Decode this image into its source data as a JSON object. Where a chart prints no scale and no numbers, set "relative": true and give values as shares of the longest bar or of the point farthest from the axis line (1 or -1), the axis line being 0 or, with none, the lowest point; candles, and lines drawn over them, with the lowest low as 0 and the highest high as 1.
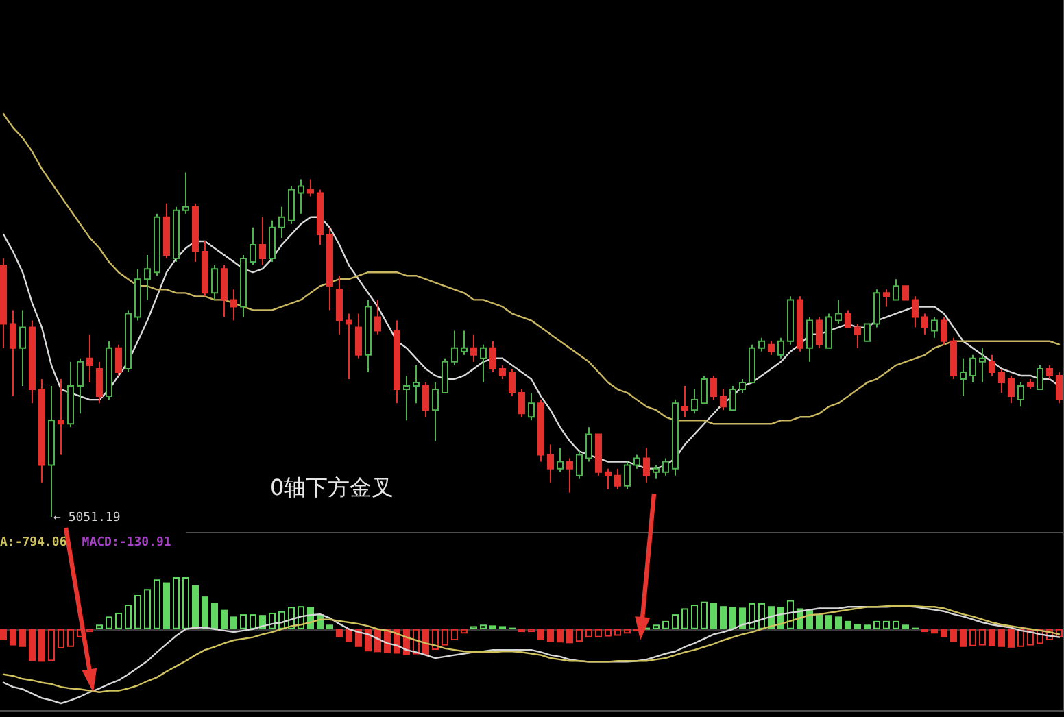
{
  "chart_data": [
    {
      "type": "candlestick",
      "relative": true,
      "categories": [
        null,
        null,
        null,
        null,
        null,
        null,
        null,
        null,
        null,
        null,
        null,
        null,
        null,
        null,
        null,
        null,
        null,
        null,
        null,
        null,
        null,
        null,
        null,
        null,
        null,
        null,
        null,
        null,
        null,
        null,
        null,
        null,
        null,
        null,
        null,
        null,
        null,
        null,
        null,
        null,
        null,
        null,
        null,
        null,
        null,
        null,
        null,
        null,
        null,
        null,
        null,
        null,
        null,
        null,
        null,
        null,
        null,
        null,
        null,
        null,
        null,
        null,
        null,
        null,
        null,
        null,
        null,
        null,
        null,
        null,
        null,
        null,
        null,
        null,
        null,
        null,
        null,
        null,
        null,
        null,
        null,
        null,
        null,
        null,
        null,
        null,
        null,
        null,
        null,
        null,
        null,
        null,
        null,
        null,
        null,
        null,
        null,
        null,
        null,
        null,
        null,
        null,
        null,
        null,
        null,
        null,
        null,
        null,
        null,
        null,
        null
      ],
      "ohlc": [
        [
          0.73,
          0.75,
          0.49,
          0.56
        ],
        [
          0.56,
          0.6,
          0.35,
          0.49
        ],
        [
          0.49,
          0.6,
          0.38,
          0.55
        ],
        [
          0.55,
          0.57,
          0.33,
          0.37
        ],
        [
          0.37,
          0.4,
          0.1,
          0.15
        ],
        [
          0.15,
          0.38,
          0,
          0.28
        ],
        [
          0.28,
          0.4,
          0.18,
          0.27
        ],
        [
          0.27,
          0.45,
          0.26,
          0.38
        ],
        [
          0.38,
          0.46,
          0.3,
          0.45
        ],
        [
          0.46,
          0.53,
          0.39,
          0.44
        ],
        [
          0.43,
          0.45,
          0.33,
          0.35
        ],
        [
          0.35,
          0.51,
          0.34,
          0.49
        ],
        [
          0.49,
          0.5,
          0.41,
          0.42
        ],
        [
          0.43,
          0.6,
          0.42,
          0.59
        ],
        [
          0.58,
          0.72,
          0.57,
          0.69
        ],
        [
          0.69,
          0.76,
          0.63,
          0.72
        ],
        [
          0.71,
          0.88,
          0.7,
          0.87
        ],
        [
          0.87,
          0.91,
          0.75,
          0.76
        ],
        [
          0.75,
          0.9,
          0.74,
          0.89
        ],
        [
          0.89,
          1.0,
          0.88,
          0.9
        ],
        [
          0.9,
          0.91,
          0.74,
          0.77
        ],
        [
          0.77,
          0.8,
          0.64,
          0.65
        ],
        [
          0.65,
          0.73,
          0.63,
          0.72
        ],
        [
          0.72,
          0.73,
          0.58,
          0.63
        ],
        [
          0.63,
          0.66,
          0.57,
          0.61
        ],
        [
          0.61,
          0.76,
          0.58,
          0.75
        ],
        [
          0.74,
          0.84,
          0.73,
          0.79
        ],
        [
          0.79,
          0.87,
          0.73,
          0.75
        ],
        [
          0.75,
          0.86,
          0.74,
          0.84
        ],
        [
          0.84,
          0.9,
          0.81,
          0.87
        ],
        [
          0.86,
          0.96,
          0.85,
          0.95
        ],
        [
          0.94,
          0.98,
          0.88,
          0.96
        ],
        [
          0.95,
          0.98,
          0.93,
          0.94
        ],
        [
          0.94,
          0.95,
          0.79,
          0.82
        ],
        [
          0.82,
          0.84,
          0.6,
          0.67
        ],
        [
          0.66,
          0.7,
          0.53,
          0.57
        ],
        [
          0.57,
          0.59,
          0.4,
          0.56
        ],
        [
          0.55,
          0.59,
          0.46,
          0.47
        ],
        [
          0.47,
          0.63,
          0.42,
          0.61
        ],
        [
          0.58,
          0.63,
          0.53,
          0.54
        ],
        null,
        [
          0.54,
          0.57,
          0.33,
          0.37
        ],
        [
          0.37,
          0.41,
          0.28,
          0.38
        ],
        [
          0.38,
          0.44,
          0.33,
          0.39
        ],
        [
          0.38,
          0.39,
          0.29,
          0.31
        ],
        [
          0.31,
          0.39,
          0.22,
          0.37
        ],
        [
          0.36,
          0.46,
          0.36,
          0.45
        ],
        [
          0.45,
          0.54,
          0.44,
          0.49
        ],
        [
          0.48,
          0.54,
          0.47,
          0.49
        ],
        [
          0.49,
          0.53,
          0.45,
          0.47
        ],
        [
          0.46,
          0.5,
          0.39,
          0.49
        ],
        [
          0.49,
          0.51,
          0.42,
          0.43
        ],
        [
          0.43,
          0.44,
          0.4,
          0.41
        ],
        [
          0.42,
          0.43,
          0.35,
          0.36
        ],
        [
          0.36,
          0.37,
          0.29,
          0.3
        ],
        [
          0.29,
          0.36,
          0.28,
          0.33
        ],
        [
          0.33,
          0.34,
          0.16,
          0.18
        ],
        [
          0.18,
          0.21,
          0.1,
          0.14
        ],
        [
          0.14,
          0.2,
          0.13,
          0.16
        ],
        [
          0.16,
          0.17,
          0.07,
          0.14
        ],
        [
          0.12,
          0.19,
          0.11,
          0.18
        ],
        [
          0.17,
          0.26,
          0.16,
          0.24
        ],
        [
          0.24,
          0.24,
          0.12,
          0.13
        ],
        [
          0.13,
          0.14,
          0.08,
          0.12
        ],
        [
          0.12,
          0.14,
          0.08,
          0.09
        ],
        [
          0.09,
          0.16,
          0.08,
          0.15
        ],
        [
          0.15,
          0.18,
          0.14,
          0.17
        ],
        [
          0.17,
          0.2,
          0.1,
          0.12
        ],
        [
          0.13,
          0.15,
          0.11,
          0.14
        ],
        [
          0.13,
          0.17,
          0.12,
          0.16
        ],
        [
          0.14,
          0.34,
          0.12,
          0.33
        ],
        [
          0.32,
          0.38,
          0.29,
          0.31
        ],
        [
          0.31,
          0.37,
          0.3,
          0.34
        ],
        [
          0.33,
          0.41,
          0.33,
          0.4
        ],
        [
          0.4,
          0.41,
          0.34,
          0.35
        ],
        [
          0.35,
          0.37,
          0.31,
          0.32
        ],
        [
          0.31,
          0.38,
          0.31,
          0.37
        ],
        [
          0.37,
          0.4,
          0.36,
          0.39
        ],
        [
          0.39,
          0.5,
          0.39,
          0.49
        ],
        [
          0.49,
          0.52,
          0.48,
          0.51
        ],
        [
          0.5,
          0.51,
          0.47,
          0.48
        ],
        [
          0.47,
          0.52,
          0.46,
          0.51
        ],
        [
          0.51,
          0.64,
          0.5,
          0.63
        ],
        [
          0.63,
          0.64,
          0.48,
          0.49
        ],
        [
          0.49,
          0.58,
          0.45,
          0.57
        ],
        [
          0.57,
          0.58,
          0.49,
          0.5
        ],
        [
          0.49,
          0.59,
          0.49,
          0.58
        ],
        [
          0.57,
          0.63,
          0.56,
          0.59
        ],
        [
          0.59,
          0.6,
          0.55,
          0.55
        ],
        [
          0.55,
          0.56,
          0.49,
          0.53
        ],
        [
          0.51,
          0.56,
          0.51,
          0.56
        ],
        [
          0.56,
          0.66,
          0.55,
          0.65
        ],
        [
          0.65,
          0.66,
          0.61,
          0.64
        ],
        [
          0.63,
          0.69,
          0.63,
          0.67
        ],
        [
          0.67,
          0.67,
          0.63,
          0.63
        ],
        [
          0.63,
          0.64,
          0.55,
          0.58
        ],
        [
          0.58,
          0.59,
          0.53,
          0.55
        ],
        [
          0.54,
          0.58,
          0.52,
          0.57
        ],
        [
          0.57,
          0.58,
          0.5,
          0.51
        ],
        [
          0.51,
          0.52,
          0.4,
          0.41
        ],
        [
          0.4,
          0.46,
          0.35,
          0.42
        ],
        [
          0.41,
          0.47,
          0.39,
          0.46
        ],
        [
          0.45,
          0.49,
          0.39,
          0.46
        ],
        [
          0.45,
          0.47,
          0.41,
          0.42
        ],
        [
          0.42,
          0.43,
          0.36,
          0.39
        ],
        [
          0.4,
          0.41,
          0.33,
          0.35
        ],
        [
          0.34,
          0.39,
          0.32,
          0.38
        ],
        [
          0.39,
          0.4,
          0.37,
          0.38
        ],
        [
          0.37,
          0.44,
          0.37,
          0.43
        ],
        [
          0.43,
          0.44,
          0.4,
          0.41
        ],
        [
          0.41,
          0.42,
          0.33,
          0.34
        ]
      ],
      "colors": [
        "#e5312d",
        "#e5312d",
        "#4fb44f",
        "#e5312d",
        "#e5312d",
        "#4fb44f",
        "#e5312d",
        "#4fb44f",
        "#4fb44f",
        "#e5312d",
        "#e5312d",
        "#4fb44f",
        "#e5312d",
        "#4fb44f",
        "#4fb44f",
        "#4fb44f",
        "#4fb44f",
        "#e5312d",
        "#4fb44f",
        "#4fb44f",
        "#e5312d",
        "#e5312d",
        "#4fb44f",
        "#e5312d",
        "#e5312d",
        "#4fb44f",
        "#4fb44f",
        "#e5312d",
        "#4fb44f",
        "#4fb44f",
        "#4fb44f",
        "#4fb44f",
        "#e5312d",
        "#e5312d",
        "#e5312d",
        "#e5312d",
        "#e5312d",
        "#e5312d",
        "#4fb44f",
        "#e5312d",
        null,
        "#e5312d",
        "#4fb44f",
        "#4fb44f",
        "#e5312d",
        "#4fb44f",
        "#4fb44f",
        "#4fb44f",
        "#4fb44f",
        "#e5312d",
        "#4fb44f",
        "#e5312d",
        "#e5312d",
        "#e5312d",
        "#e5312d",
        "#4fb44f",
        "#e5312d",
        "#e5312d",
        "#4fb44f",
        "#e5312d",
        "#4fb44f",
        "#4fb44f",
        "#e5312d",
        "#e5312d",
        "#e5312d",
        "#4fb44f",
        "#4fb44f",
        "#e5312d",
        "#4fb44f",
        "#4fb44f",
        "#4fb44f",
        "#e5312d",
        "#4fb44f",
        "#4fb44f",
        "#e5312d",
        "#e5312d",
        "#4fb44f",
        "#4fb44f",
        "#4fb44f",
        "#4fb44f",
        "#e5312d",
        "#4fb44f",
        "#4fb44f",
        "#e5312d",
        "#4fb44f",
        "#e5312d",
        "#4fb44f",
        "#4fb44f",
        "#e5312d",
        "#e5312d",
        "#4fb44f",
        "#4fb44f",
        "#e5312d",
        "#4fb44f",
        "#e5312d",
        "#e5312d",
        "#e5312d",
        "#4fb44f",
        "#e5312d",
        "#e5312d",
        "#4fb44f",
        "#4fb44f",
        "#4fb44f",
        "#e5312d",
        "#e5312d",
        "#e5312d",
        "#4fb44f",
        "#e5312d",
        "#4fb44f",
        "#e5312d",
        "#e5312d"
      ],
      "series": [
        {
          "type": "line",
          "color": "#d9d9d9",
          "values": [
            0.82,
            0.77,
            0.71,
            0.62,
            0.55,
            0.44,
            0.37,
            0.36,
            0.35,
            0.34,
            0.34,
            0.37,
            0.41,
            0.45,
            0.51,
            0.57,
            0.64,
            0.71,
            0.75,
            0.78,
            0.8,
            0.8,
            0.78,
            0.76,
            0.74,
            0.72,
            0.71,
            0.72,
            0.75,
            0.79,
            0.82,
            0.85,
            0.87,
            0.87,
            0.84,
            0.79,
            0.73,
            0.69,
            0.65,
            0.61,
            0.56,
            0.51,
            0.49,
            0.46,
            0.43,
            0.41,
            0.4,
            0.4,
            0.41,
            0.43,
            0.45,
            0.46,
            0.46,
            0.44,
            0.42,
            0.4,
            0.35,
            0.31,
            0.26,
            0.22,
            0.19,
            0.18,
            0.17,
            0.16,
            0.16,
            0.16,
            0.15,
            0.14,
            0.14,
            0.15,
            0.17,
            0.21,
            0.24,
            0.27,
            0.3,
            0.33,
            0.35,
            0.38,
            0.39,
            0.41,
            0.43,
            0.45,
            0.48,
            0.5,
            0.53,
            0.53,
            0.54,
            0.55,
            0.56,
            0.55,
            0.55,
            0.57,
            0.58,
            0.59,
            0.6,
            0.61,
            0.61,
            0.61,
            0.59,
            0.55,
            0.51,
            0.49,
            0.47,
            0.45,
            0.43,
            0.42,
            0.41,
            0.41,
            0.4,
            0.4,
            0.38
          ]
        },
        {
          "type": "line",
          "color": "#c9b660",
          "values": [
            1.17,
            1.13,
            1.1,
            1.06,
            1.01,
            0.97,
            0.93,
            0.89,
            0.85,
            0.81,
            0.78,
            0.74,
            0.71,
            0.69,
            0.67,
            0.67,
            0.66,
            0.66,
            0.65,
            0.65,
            0.64,
            0.64,
            0.63,
            0.63,
            0.62,
            0.61,
            0.6,
            0.6,
            0.6,
            0.61,
            0.62,
            0.63,
            0.65,
            0.67,
            0.68,
            0.69,
            0.69,
            0.7,
            0.71,
            0.71,
            0.71,
            0.71,
            0.7,
            0.7,
            0.69,
            0.68,
            0.67,
            0.66,
            0.65,
            0.63,
            0.63,
            0.62,
            0.61,
            0.59,
            0.58,
            0.57,
            0.55,
            0.53,
            0.51,
            0.49,
            0.47,
            0.45,
            0.42,
            0.39,
            0.37,
            0.36,
            0.34,
            0.32,
            0.31,
            0.29,
            0.28,
            0.28,
            0.28,
            0.28,
            0.27,
            0.27,
            0.27,
            0.27,
            0.27,
            0.27,
            0.27,
            0.28,
            0.28,
            0.29,
            0.29,
            0.3,
            0.32,
            0.33,
            0.35,
            0.37,
            0.39,
            0.4,
            0.42,
            0.44,
            0.45,
            0.46,
            0.47,
            0.49,
            0.5,
            0.51,
            0.51,
            0.51,
            0.51,
            0.51,
            0.51,
            0.51,
            0.51,
            0.51,
            0.51,
            0.51,
            0.5
          ]
        }
      ],
      "annotations": [
        "← 5051.19",
        "0轴下方金叉"
      ]
    },
    {
      "type": "bar",
      "relative": true,
      "categories": [
        null,
        null,
        null,
        null,
        null,
        null,
        null,
        null,
        null,
        null,
        null,
        null,
        null,
        null,
        null,
        null,
        null,
        null,
        null,
        null,
        null,
        null,
        null,
        null,
        null,
        null,
        null,
        null,
        null,
        null,
        null,
        null,
        null,
        null,
        null,
        null,
        null,
        null,
        null,
        null,
        null,
        null,
        null,
        null,
        null,
        null,
        null,
        null,
        null,
        null,
        null,
        null,
        null,
        null,
        null,
        null,
        null,
        null,
        null,
        null,
        null,
        null,
        null,
        null,
        null,
        null,
        null,
        null,
        null,
        null,
        null,
        null,
        null,
        null,
        null,
        null,
        null,
        null,
        null,
        null,
        null,
        null,
        null,
        null,
        null,
        null,
        null,
        null,
        null,
        null,
        null,
        null,
        null,
        null,
        null,
        null,
        null,
        null,
        null,
        null,
        null,
        null,
        null,
        null,
        null,
        null,
        null,
        null,
        null,
        null,
        null
      ],
      "series": [
        {
          "values": [
            -0.15,
            -0.22,
            -0.24,
            -0.43,
            -0.44,
            -0.43,
            -0.26,
            -0.24,
            -0.11,
            -0.04,
            0.06,
            0.17,
            0.22,
            0.33,
            0.46,
            0.54,
            0.67,
            0.63,
            0.7,
            0.7,
            0.59,
            0.44,
            0.35,
            0.26,
            0.17,
            0.2,
            0.2,
            0.19,
            0.22,
            0.24,
            0.3,
            0.31,
            0.3,
            0.2,
            0.06,
            -0.11,
            -0.17,
            -0.24,
            -0.3,
            -0.31,
            -0.32,
            -0.33,
            -0.35,
            -0.34,
            -0.35,
            -0.28,
            -0.22,
            -0.15,
            -0.06,
            0.04,
            0.06,
            0.05,
            0.04,
            0.02,
            -0.04,
            -0.04,
            -0.15,
            -0.17,
            -0.18,
            -0.19,
            -0.17,
            -0.11,
            -0.11,
            -0.1,
            -0.09,
            -0.06,
            -0.02,
            0.02,
            0.06,
            0.11,
            0.2,
            0.28,
            0.33,
            0.37,
            0.35,
            0.31,
            0.3,
            0.29,
            0.35,
            0.35,
            0.31,
            0.3,
            0.39,
            0.28,
            0.26,
            0.2,
            0.19,
            0.17,
            0.11,
            0.07,
            0.06,
            0.11,
            0.11,
            0.11,
            0.06,
            0.02,
            -0.04,
            -0.06,
            -0.11,
            -0.17,
            -0.24,
            -0.23,
            -0.22,
            -0.23,
            -0.24,
            -0.25,
            -0.24,
            -0.22,
            -0.2,
            -0.15,
            -0.11
          ],
          "colors": [
            "#e4302c",
            "#e4302c",
            "#e4302c",
            "#e4302c",
            "#e4302c",
            "#e4302c",
            "#e4302c",
            "#e4302c",
            "#e4302c",
            "#e4302c",
            "#62d862",
            "#62d862",
            "#62d862",
            "#62d862",
            "#62d862",
            "#62d862",
            "#62d862",
            "#62d862",
            "#62d862",
            "#62d862",
            "#62d862",
            "#62d862",
            "#62d862",
            "#62d862",
            "#62d862",
            "#62d862",
            "#62d862",
            "#62d862",
            "#62d862",
            "#62d862",
            "#62d862",
            "#62d862",
            "#62d862",
            "#62d862",
            "#62d862",
            "#e4302c",
            "#e4302c",
            "#e4302c",
            "#e4302c",
            "#e4302c",
            "#e4302c",
            "#e4302c",
            "#e4302c",
            "#e4302c",
            "#e4302c",
            "#e4302c",
            "#e4302c",
            "#e4302c",
            "#e4302c",
            "#62d862",
            "#62d862",
            "#62d862",
            "#62d862",
            "#62d862",
            "#e4302c",
            "#e4302c",
            "#e4302c",
            "#e4302c",
            "#e4302c",
            "#e4302c",
            "#e4302c",
            "#e4302c",
            "#e4302c",
            "#e4302c",
            "#e4302c",
            "#e4302c",
            "#e4302c",
            "#62d862",
            "#62d862",
            "#62d862",
            "#62d862",
            "#62d862",
            "#62d862",
            "#62d862",
            "#62d862",
            "#62d862",
            "#62d862",
            "#62d862",
            "#62d862",
            "#62d862",
            "#62d862",
            "#62d862",
            "#62d862",
            "#62d862",
            "#62d862",
            "#62d862",
            "#62d862",
            "#62d862",
            "#62d862",
            "#62d862",
            "#62d862",
            "#62d862",
            "#62d862",
            "#62d862",
            "#62d862",
            "#62d862",
            "#e4302c",
            "#e4302c",
            "#e4302c",
            "#e4302c",
            "#e4302c",
            "#e4302c",
            "#e4302c",
            "#e4302c",
            "#e4302c",
            "#e4302c",
            "#e4302c",
            "#e4302c",
            "#e4302c",
            "#e4302c",
            "#e4302c"
          ]
        },
        {
          "type": "line",
          "color": "#d6d6d6",
          "values": [
            -0.72,
            -0.78,
            -0.81,
            -0.87,
            -0.93,
            -0.96,
            -1.0,
            -0.96,
            -0.91,
            -0.85,
            -0.8,
            -0.74,
            -0.69,
            -0.61,
            -0.52,
            -0.43,
            -0.31,
            -0.2,
            -0.09,
            0.0,
            0.02,
            0.02,
            0.0,
            -0.02,
            -0.04,
            -0.02,
            0.0,
            0.04,
            0.07,
            0.09,
            0.13,
            0.17,
            0.19,
            0.2,
            0.15,
            0.07,
            0.0,
            -0.04,
            -0.07,
            -0.13,
            -0.19,
            -0.22,
            -0.28,
            -0.31,
            -0.35,
            -0.39,
            -0.37,
            -0.35,
            -0.33,
            -0.31,
            -0.3,
            -0.28,
            -0.28,
            -0.28,
            -0.28,
            -0.28,
            -0.31,
            -0.35,
            -0.37,
            -0.41,
            -0.43,
            -0.44,
            -0.44,
            -0.44,
            -0.44,
            -0.44,
            -0.43,
            -0.41,
            -0.37,
            -0.33,
            -0.3,
            -0.24,
            -0.19,
            -0.13,
            -0.07,
            -0.04,
            0.0,
            0.06,
            0.09,
            0.13,
            0.17,
            0.2,
            0.22,
            0.24,
            0.26,
            0.28,
            0.28,
            0.28,
            0.3,
            0.3,
            0.3,
            0.3,
            0.3,
            0.31,
            0.31,
            0.3,
            0.28,
            0.26,
            0.24,
            0.2,
            0.17,
            0.13,
            0.09,
            0.06,
            0.04,
            0.02,
            -0.02,
            -0.04,
            -0.07,
            -0.09,
            -0.11
          ]
        },
        {
          "type": "line",
          "name": "A:-794.06",
          "color": "#cfc15e",
          "values": [
            -0.61,
            -0.63,
            -0.67,
            -0.69,
            -0.72,
            -0.74,
            -0.78,
            -0.8,
            -0.81,
            -0.83,
            -0.85,
            -0.83,
            -0.83,
            -0.8,
            -0.76,
            -0.7,
            -0.65,
            -0.57,
            -0.5,
            -0.43,
            -0.35,
            -0.28,
            -0.24,
            -0.19,
            -0.15,
            -0.13,
            -0.11,
            -0.07,
            -0.04,
            0.0,
            0.04,
            0.06,
            0.09,
            0.13,
            0.13,
            0.11,
            0.09,
            0.07,
            0.04,
            0.0,
            -0.02,
            -0.06,
            -0.11,
            -0.15,
            -0.19,
            -0.22,
            -0.26,
            -0.28,
            -0.3,
            -0.31,
            -0.31,
            -0.31,
            -0.3,
            -0.3,
            -0.31,
            -0.33,
            -0.35,
            -0.39,
            -0.41,
            -0.43,
            -0.43,
            -0.44,
            -0.44,
            -0.44,
            -0.43,
            -0.43,
            -0.43,
            -0.43,
            -0.41,
            -0.39,
            -0.35,
            -0.31,
            -0.28,
            -0.24,
            -0.2,
            -0.15,
            -0.11,
            -0.07,
            -0.04,
            0.0,
            0.04,
            0.07,
            0.11,
            0.15,
            0.19,
            0.2,
            0.22,
            0.24,
            0.26,
            0.28,
            0.3,
            0.3,
            0.31,
            0.31,
            0.31,
            0.31,
            0.3,
            0.3,
            0.28,
            0.24,
            0.2,
            0.17,
            0.13,
            0.09,
            0.06,
            0.04,
            0.02,
            0.0,
            -0.02,
            -0.04,
            -0.07
          ]
        }
      ],
      "annotations": [
        "MACD:-130.91"
      ]
    }
  ]
}
